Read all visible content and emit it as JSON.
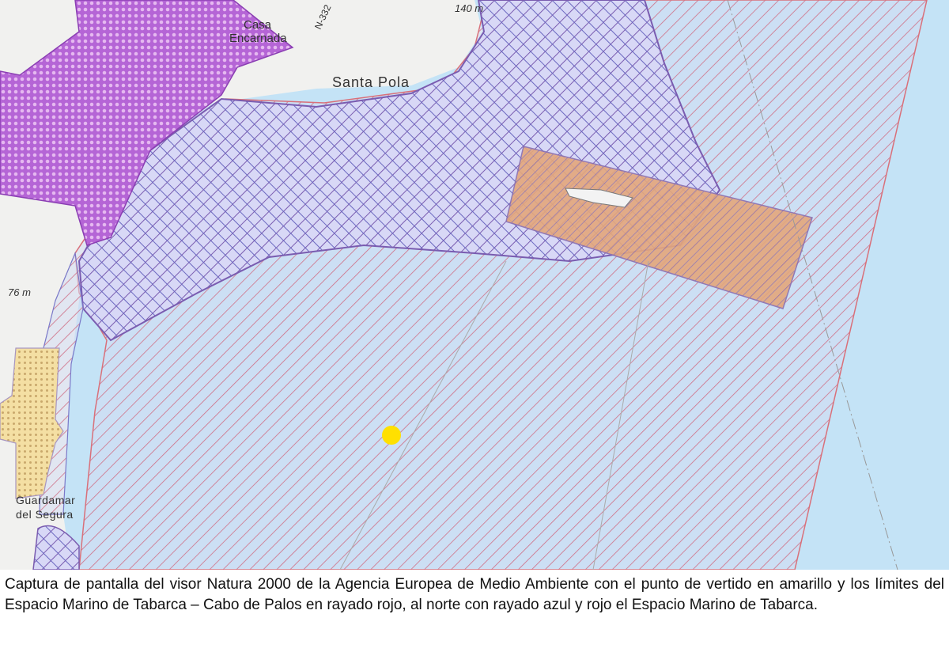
{
  "map": {
    "labels": {
      "casa": "Casa",
      "encarnada": "Encarnada",
      "road": "N-332",
      "elevation_top": "140 m",
      "santa_pola": "Santa Pola",
      "elevation_left": "76 m",
      "guardamar_1": "Guardamar",
      "guardamar_2": "del Segura"
    },
    "colors": {
      "land": "#f1f1ef",
      "sea": "#c4e3f6",
      "red_hatch": "#d9707a",
      "blue_hatch": "#6a64b8",
      "purple_dots": "#a64fc9",
      "orange_area": "#e8a070",
      "yellow_point": "#ffe000"
    },
    "features": [
      "discharge-point",
      "espacio-marino-tabarca-cabo-de-palos",
      "espacio-marino-tabarca"
    ]
  },
  "caption": "Captura de pantalla del visor Natura 2000 de la Agencia Europea de Medio Ambiente con el punto de vertido en amarillo y los límites del Espacio Marino de Tabarca – Cabo de Palos en rayado rojo, al norte con rayado azul y rojo el Espacio Marino de Tabarca."
}
